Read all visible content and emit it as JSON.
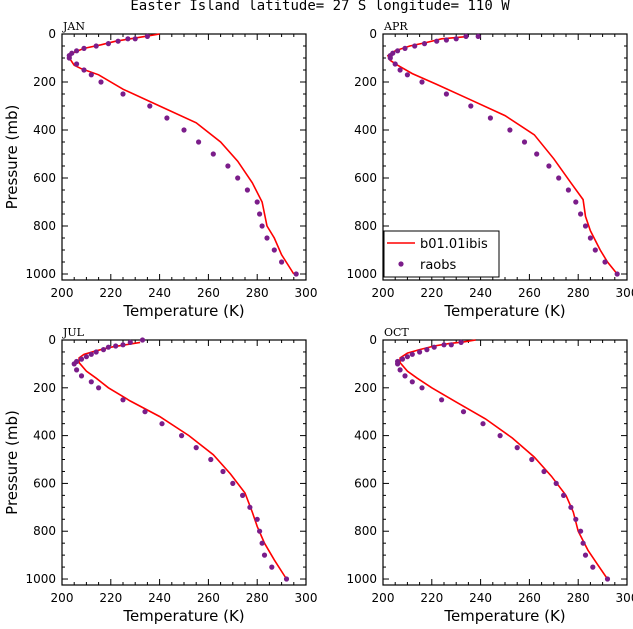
{
  "figure_title": "Easter Island  latitude= 27 S longitude= 110 W",
  "chart_data": [
    {
      "type": "line",
      "panel": "JAN",
      "xlabel": "Temperature (K)",
      "ylabel": "Pressure (mb)",
      "xlim": [
        200,
        300
      ],
      "ylim": [
        1025,
        0
      ],
      "x_ticks": [
        200,
        220,
        240,
        260,
        280,
        300
      ],
      "y_ticks": [
        0,
        200,
        400,
        600,
        800,
        1000
      ],
      "series": [
        {
          "name": "b01.01ibis",
          "style": "line",
          "color": "#ff0000",
          "points": [
            [
              240,
              0
            ],
            [
              234,
              10
            ],
            [
              228,
              20
            ],
            [
              222,
              30
            ],
            [
              216,
              45
            ],
            [
              209,
              60
            ],
            [
              204,
              80
            ],
            [
              203,
              100
            ],
            [
              205,
              130
            ],
            [
              208,
              145
            ],
            [
              215,
              170
            ],
            [
              225,
              230
            ],
            [
              240,
              300
            ],
            [
              255,
              370
            ],
            [
              265,
              450
            ],
            [
              272,
              530
            ],
            [
              278,
              620
            ],
            [
              282,
              700
            ],
            [
              284,
              800
            ],
            [
              287,
              850
            ],
            [
              290,
              920
            ],
            [
              295,
              1000
            ]
          ]
        },
        {
          "name": "raobs",
          "style": "points",
          "color": "#7b1d8a",
          "points": [
            [
              235,
              10
            ],
            [
              230,
              20
            ],
            [
              227,
              20
            ],
            [
              223,
              30
            ],
            [
              219,
              40
            ],
            [
              214,
              50
            ],
            [
              209,
              60
            ],
            [
              206,
              70
            ],
            [
              204,
              80
            ],
            [
              203,
              90
            ],
            [
              203,
              100
            ],
            [
              206,
              125
            ],
            [
              209,
              150
            ],
            [
              212,
              170
            ],
            [
              216,
              200
            ],
            [
              225,
              250
            ],
            [
              236,
              300
            ],
            [
              243,
              350
            ],
            [
              250,
              400
            ],
            [
              256,
              450
            ],
            [
              262,
              500
            ],
            [
              268,
              550
            ],
            [
              272,
              600
            ],
            [
              276,
              650
            ],
            [
              280,
              700
            ],
            [
              281,
              750
            ],
            [
              282,
              800
            ],
            [
              284,
              850
            ],
            [
              287,
              900
            ],
            [
              290,
              950
            ],
            [
              296,
              1000
            ]
          ]
        }
      ]
    },
    {
      "type": "line",
      "panel": "APR",
      "xlabel": "Temperature (K)",
      "ylabel": "",
      "xlim": [
        200,
        300
      ],
      "ylim": [
        1025,
        0
      ],
      "x_ticks": [
        200,
        220,
        240,
        260,
        280,
        300
      ],
      "y_ticks": [
        0,
        200,
        400,
        600,
        800,
        1000
      ],
      "series": [
        {
          "name": "b01.01ibis",
          "style": "line",
          "color": "#ff0000",
          "points": [
            [
              235,
              10
            ],
            [
              230,
              15
            ],
            [
              224,
              20
            ],
            [
              218,
              35
            ],
            [
              211,
              50
            ],
            [
              205,
              70
            ],
            [
              202,
              90
            ],
            [
              203,
              110
            ],
            [
              206,
              130
            ],
            [
              212,
              165
            ],
            [
              222,
              210
            ],
            [
              235,
              270
            ],
            [
              250,
              340
            ],
            [
              262,
              420
            ],
            [
              270,
              520
            ],
            [
              277,
              620
            ],
            [
              282,
              690
            ],
            [
              283,
              760
            ],
            [
              285,
              820
            ],
            [
              289,
              900
            ],
            [
              292,
              950
            ],
            [
              296,
              1000
            ]
          ]
        },
        {
          "name": "raobs",
          "style": "points",
          "color": "#7b1d8a",
          "points": [
            [
              239,
              10
            ],
            [
              234,
              10
            ],
            [
              230,
              20
            ],
            [
              226,
              25
            ],
            [
              222,
              30
            ],
            [
              217,
              40
            ],
            [
              213,
              50
            ],
            [
              209,
              60
            ],
            [
              206,
              70
            ],
            [
              204,
              80
            ],
            [
              203,
              90
            ],
            [
              203,
              100
            ],
            [
              205,
              125
            ],
            [
              207,
              150
            ],
            [
              210,
              170
            ],
            [
              216,
              200
            ],
            [
              226,
              250
            ],
            [
              236,
              300
            ],
            [
              244,
              350
            ],
            [
              252,
              400
            ],
            [
              258,
              450
            ],
            [
              263,
              500
            ],
            [
              268,
              550
            ],
            [
              272,
              600
            ],
            [
              276,
              650
            ],
            [
              279,
              700
            ],
            [
              281,
              750
            ],
            [
              283,
              800
            ],
            [
              285,
              850
            ],
            [
              287,
              900
            ],
            [
              291,
              950
            ],
            [
              296,
              1000
            ]
          ]
        }
      ]
    },
    {
      "type": "line",
      "panel": "JUL",
      "xlabel": "Temperature (K)",
      "ylabel": "Pressure (mb)",
      "xlim": [
        200,
        300
      ],
      "ylim": [
        1025,
        0
      ],
      "x_ticks": [
        200,
        220,
        240,
        260,
        280,
        300
      ],
      "y_ticks": [
        0,
        200,
        400,
        600,
        800,
        1000
      ],
      "series": [
        {
          "name": "b01.01ibis",
          "style": "line",
          "color": "#ff0000",
          "points": [
            [
              232,
              10
            ],
            [
              226,
              20
            ],
            [
              220,
              30
            ],
            [
              214,
              45
            ],
            [
              209,
              60
            ],
            [
              207,
              75
            ],
            [
              207,
              95
            ],
            [
              210,
              130
            ],
            [
              214,
              160
            ],
            [
              219,
              200
            ],
            [
              228,
              255
            ],
            [
              240,
              320
            ],
            [
              252,
              400
            ],
            [
              262,
              480
            ],
            [
              269,
              560
            ],
            [
              275,
              640
            ],
            [
              278,
              720
            ],
            [
              280,
              780
            ],
            [
              283,
              850
            ],
            [
              287,
              920
            ],
            [
              292,
              1000
            ]
          ]
        },
        {
          "name": "raobs",
          "style": "points",
          "color": "#7b1d8a",
          "points": [
            [
              233,
              0
            ],
            [
              228,
              10
            ],
            [
              225,
              20
            ],
            [
              222,
              25
            ],
            [
              219,
              30
            ],
            [
              217,
              40
            ],
            [
              214,
              50
            ],
            [
              212,
              60
            ],
            [
              210,
              70
            ],
            [
              208,
              80
            ],
            [
              206,
              90
            ],
            [
              205,
              100
            ],
            [
              206,
              125
            ],
            [
              208,
              150
            ],
            [
              212,
              175
            ],
            [
              215,
              200
            ],
            [
              225,
              250
            ],
            [
              234,
              300
            ],
            [
              241,
              350
            ],
            [
              249,
              400
            ],
            [
              255,
              450
            ],
            [
              261,
              500
            ],
            [
              266,
              550
            ],
            [
              270,
              600
            ],
            [
              274,
              650
            ],
            [
              277,
              700
            ],
            [
              280,
              750
            ],
            [
              281,
              800
            ],
            [
              282,
              850
            ],
            [
              283,
              900
            ],
            [
              286,
              950
            ],
            [
              292,
              1000
            ]
          ]
        }
      ]
    },
    {
      "type": "line",
      "panel": "OCT",
      "xlabel": "Temperature (K)",
      "ylabel": "",
      "xlim": [
        200,
        300
      ],
      "ylim": [
        1025,
        0
      ],
      "x_ticks": [
        200,
        220,
        240,
        260,
        280,
        300
      ],
      "y_ticks": [
        0,
        200,
        400,
        600,
        800,
        1000
      ],
      "series": [
        {
          "name": "b01.01ibis",
          "style": "line",
          "color": "#ff0000",
          "points": [
            [
              238,
              0
            ],
            [
              233,
              8
            ],
            [
              227,
              15
            ],
            [
              221,
              25
            ],
            [
              215,
              40
            ],
            [
              210,
              55
            ],
            [
              207,
              75
            ],
            [
              207,
              95
            ],
            [
              210,
              130
            ],
            [
              214,
              160
            ],
            [
              220,
              200
            ],
            [
              230,
              260
            ],
            [
              242,
              330
            ],
            [
              253,
              410
            ],
            [
              262,
              490
            ],
            [
              269,
              570
            ],
            [
              275,
              650
            ],
            [
              278,
              720
            ],
            [
              280,
              800
            ],
            [
              284,
              880
            ],
            [
              288,
              940
            ],
            [
              292,
              1000
            ]
          ]
        },
        {
          "name": "raobs",
          "style": "points",
          "color": "#7b1d8a",
          "points": [
            [
              232,
              10
            ],
            [
              228,
              20
            ],
            [
              225,
              20
            ],
            [
              221,
              30
            ],
            [
              218,
              40
            ],
            [
              215,
              50
            ],
            [
              212,
              60
            ],
            [
              210,
              70
            ],
            [
              208,
              80
            ],
            [
              206,
              90
            ],
            [
              206,
              100
            ],
            [
              207,
              125
            ],
            [
              209,
              150
            ],
            [
              212,
              175
            ],
            [
              216,
              200
            ],
            [
              224,
              250
            ],
            [
              233,
              300
            ],
            [
              241,
              350
            ],
            [
              248,
              400
            ],
            [
              255,
              450
            ],
            [
              261,
              500
            ],
            [
              266,
              550
            ],
            [
              271,
              600
            ],
            [
              274,
              650
            ],
            [
              277,
              700
            ],
            [
              279,
              750
            ],
            [
              281,
              800
            ],
            [
              282,
              850
            ],
            [
              283,
              900
            ],
            [
              286,
              950
            ],
            [
              292,
              1000
            ]
          ]
        }
      ]
    }
  ],
  "legend": {
    "entries": [
      {
        "label": "b01.01ibis",
        "style": "line",
        "color": "#ff0000"
      },
      {
        "label": "raobs",
        "style": "points",
        "color": "#7b1d8a"
      }
    ]
  }
}
